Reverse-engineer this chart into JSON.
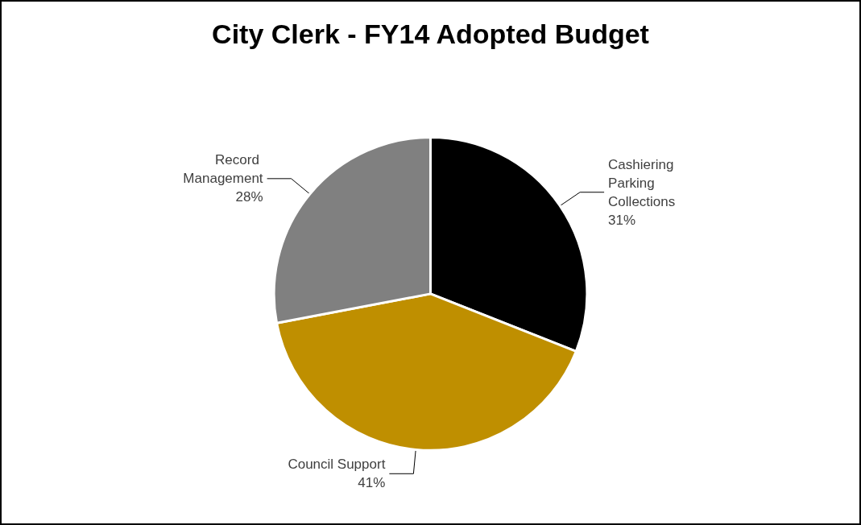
{
  "chart_data": {
    "type": "pie",
    "title": "City Clerk - FY14 Adopted Budget",
    "categories": [
      "Cashiering Parking Collections",
      "Council Support",
      "Record Management"
    ],
    "values": [
      31,
      41,
      28
    ],
    "value_labels": [
      "31%",
      "41%",
      "28%"
    ],
    "colors": [
      "#000000",
      "#bf8f00",
      "#808080"
    ],
    "legend": false
  }
}
